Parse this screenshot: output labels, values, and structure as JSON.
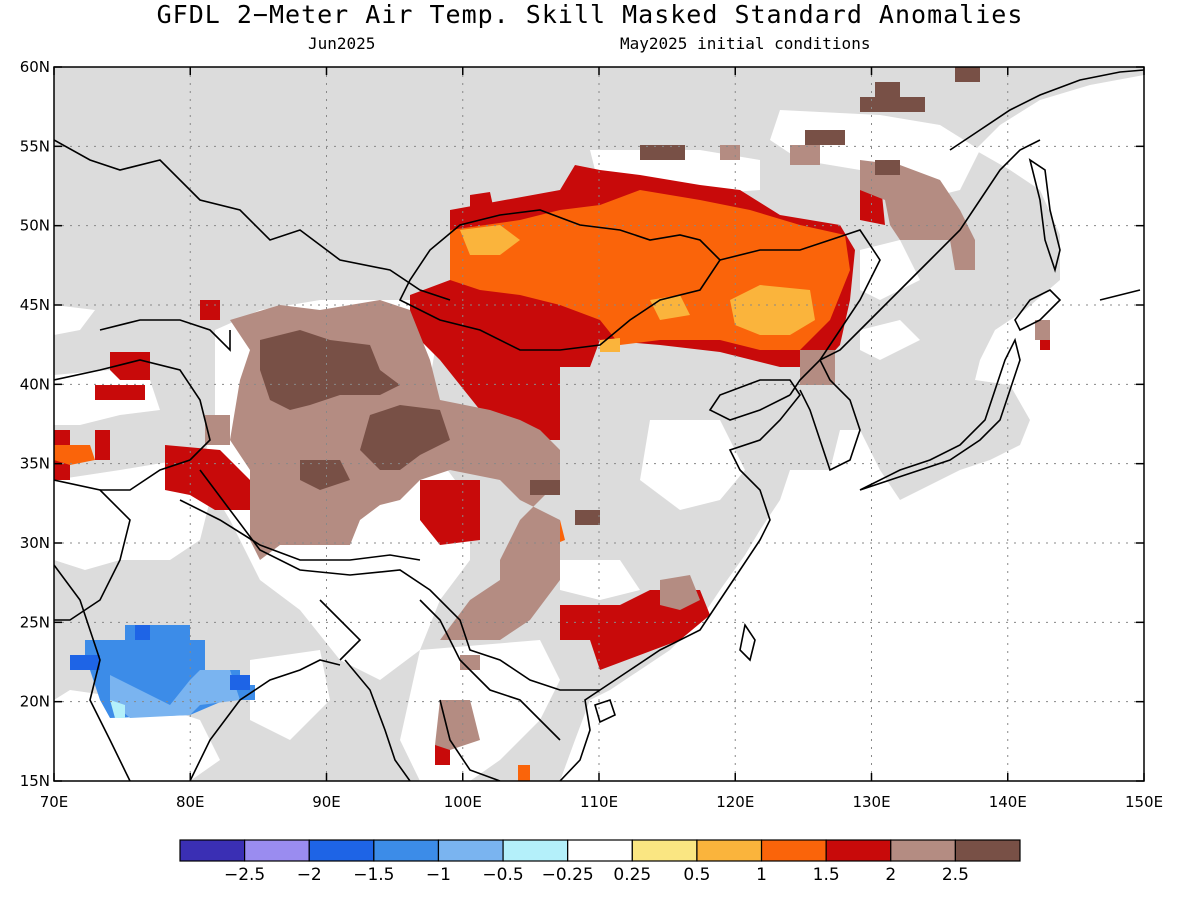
{
  "title": "GFDL 2−Meter Air Temp. Skill Masked Standard Anomalies",
  "subtitle_left": "Jun2025",
  "subtitle_right": "May2025 initial conditions",
  "map": {
    "lon_range": [
      70,
      150
    ],
    "lat_range": [
      15,
      60
    ],
    "lon_ticks": [
      "70E",
      "80E",
      "90E",
      "100E",
      "110E",
      "120E",
      "130E",
      "140E",
      "150E"
    ],
    "lat_ticks": [
      "15N",
      "20N",
      "25N",
      "30N",
      "35N",
      "40N",
      "45N",
      "50N",
      "55N",
      "60N"
    ],
    "grid": "dotted",
    "masked_color": "#dcdcdc",
    "ocean_color": "#ffffff"
  },
  "colorbar": {
    "colors": [
      "#3a2fb4",
      "#9a8cf0",
      "#1e64e6",
      "#3c8ce8",
      "#7ab4f0",
      "#b4f0fa",
      "#ffffff",
      "#fae682",
      "#fab43c",
      "#fa640a",
      "#c80a0a",
      "#b48c82",
      "#785046"
    ],
    "labels": [
      "−2.5",
      "−2",
      "−1.5",
      "−1",
      "−0.5",
      "−0.25",
      "0.25",
      "0.5",
      "1",
      "1.5",
      "2",
      "2.5"
    ]
  }
}
